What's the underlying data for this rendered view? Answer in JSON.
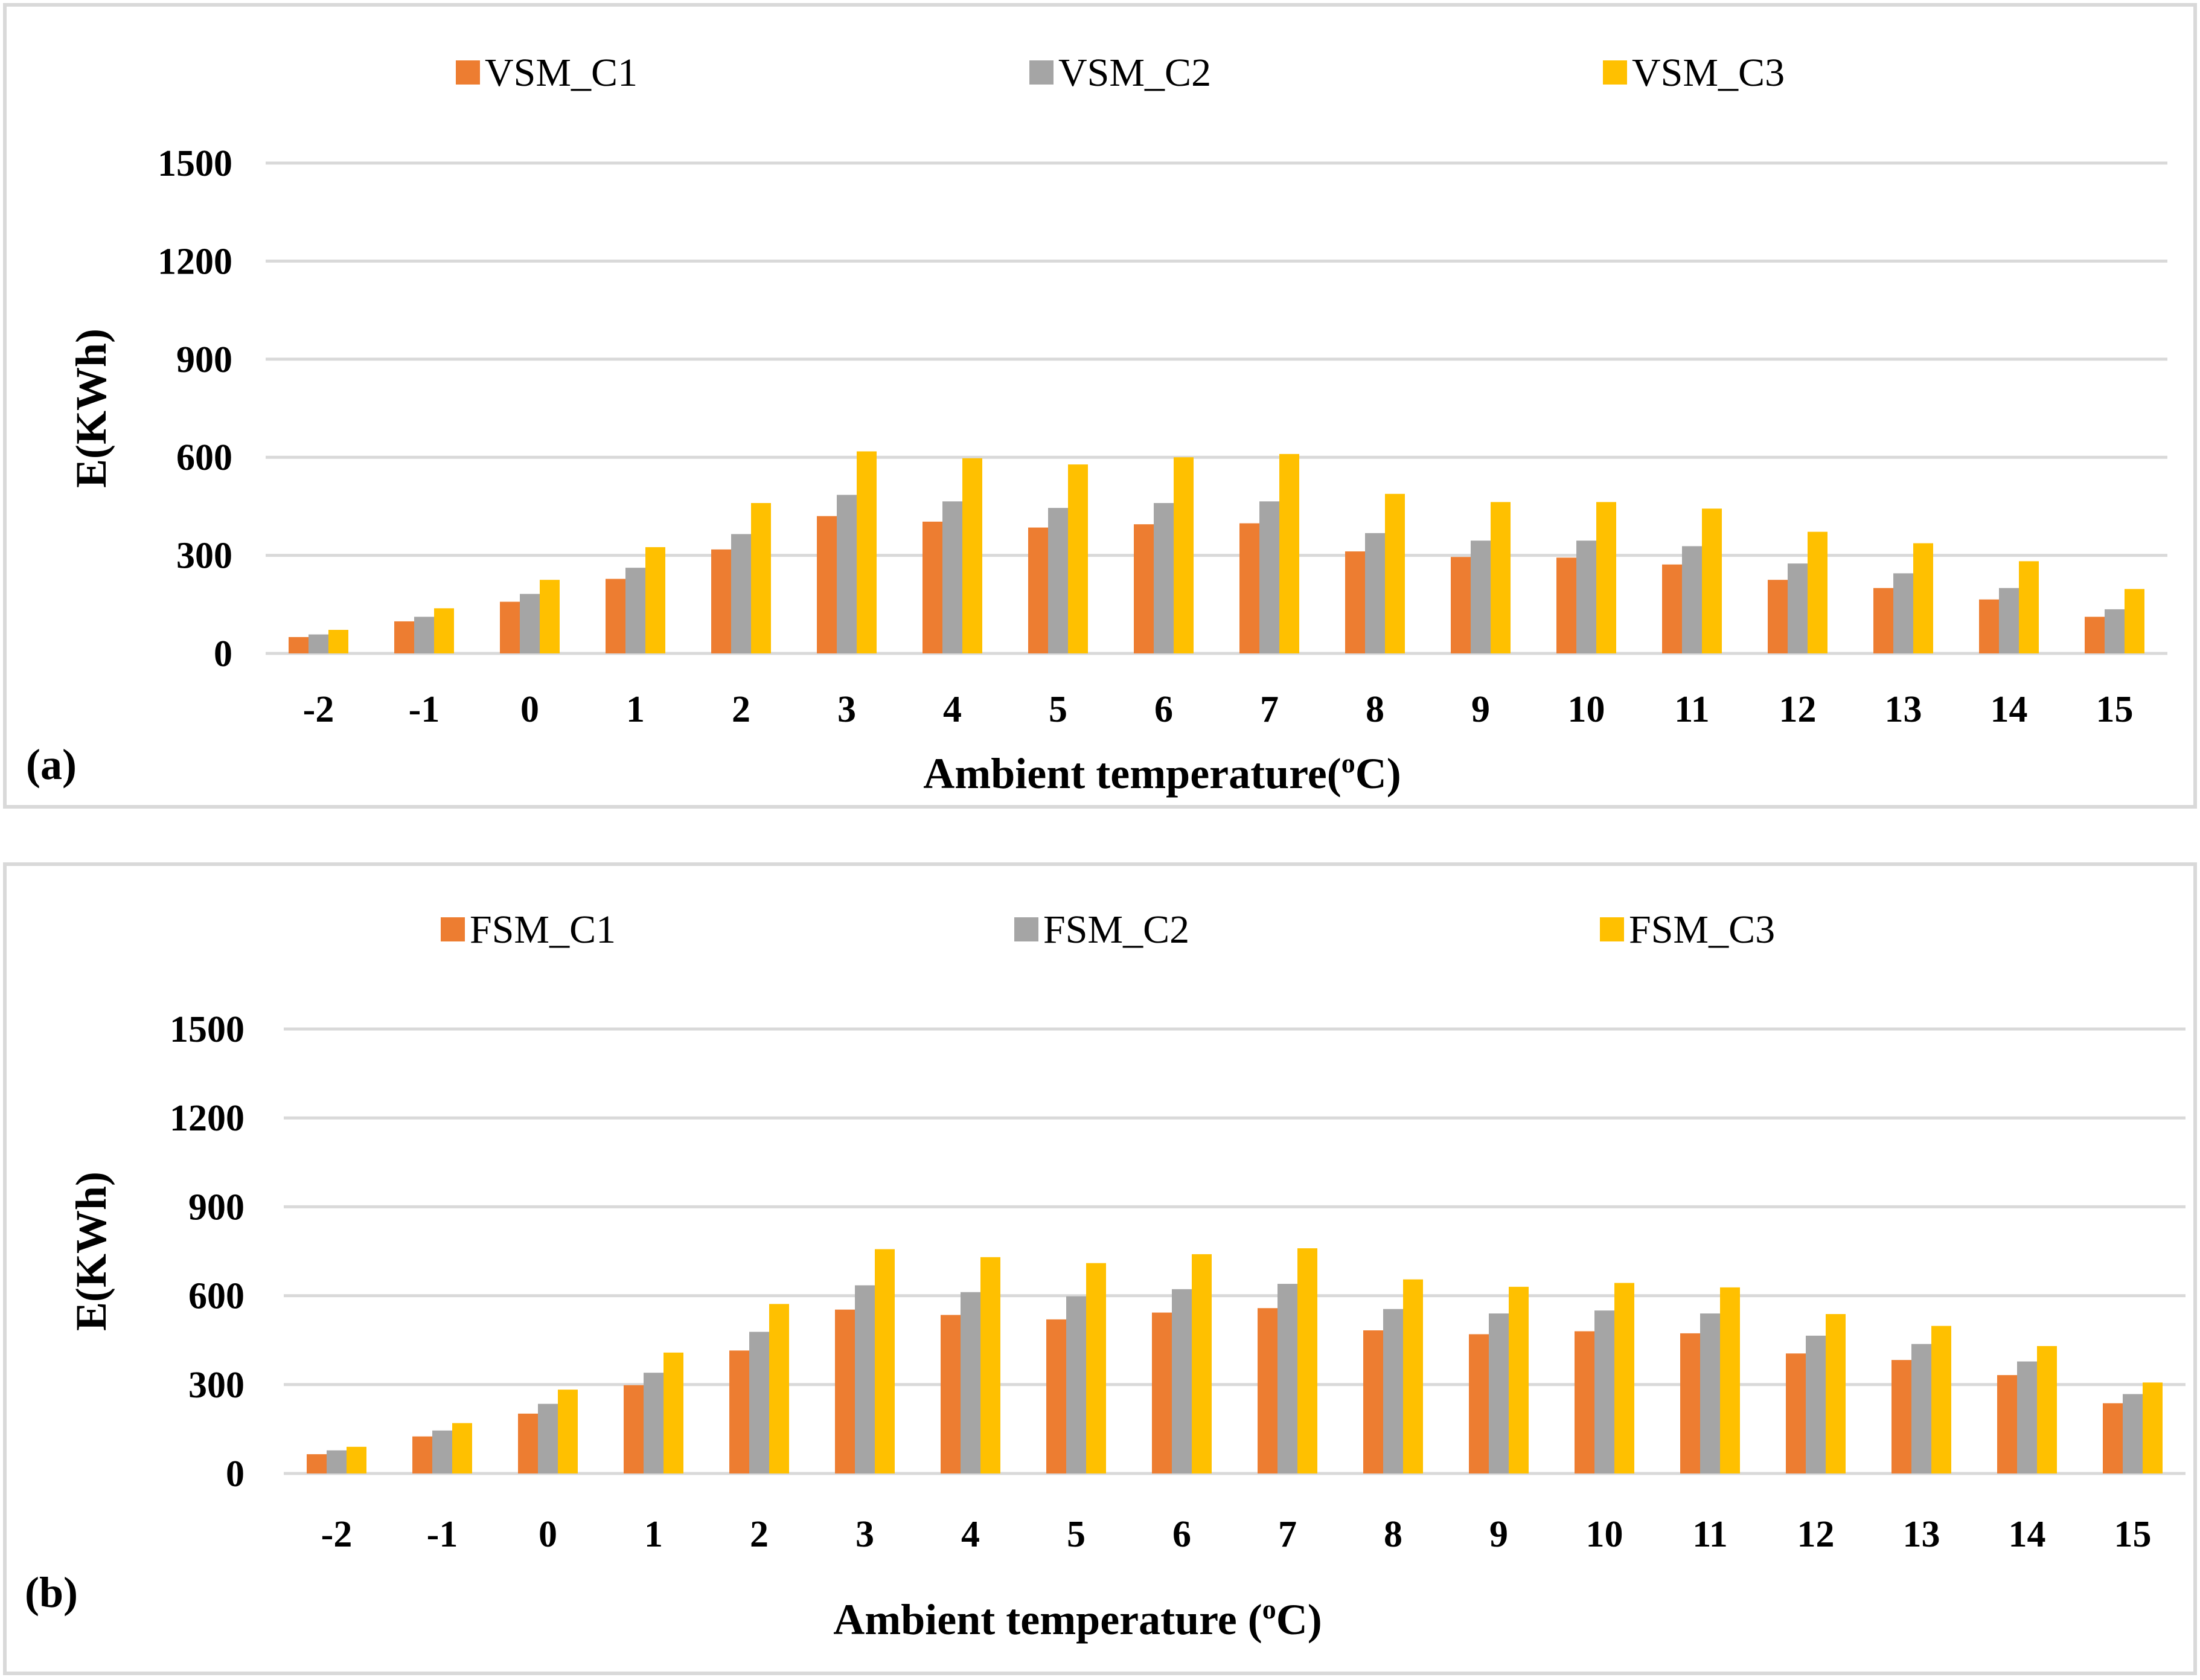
{
  "colors": {
    "c1": "#ED7D31",
    "c2": "#A5A5A5",
    "c3": "#FFC000"
  },
  "chart_data": [
    {
      "type": "bar",
      "panel_tag": "(a)",
      "xlabel": "Ambient temperature(",
      "xlabel_sup": "o",
      "xlabel_end": "C)",
      "ylabel": "E(KWh)",
      "ylim": [
        0,
        1500
      ],
      "yticks": [
        0,
        300,
        600,
        900,
        1200,
        1500
      ],
      "grid": true,
      "legend_position": "top",
      "categories": [
        "-2",
        "-1",
        "0",
        "1",
        "2",
        "3",
        "4",
        "5",
        "6",
        "7",
        "8",
        "9",
        "10",
        "11",
        "12",
        "13",
        "14",
        "15"
      ],
      "series": [
        {
          "name": "VSM_C1",
          "values": [
            50,
            98,
            158,
            228,
            318,
            420,
            403,
            385,
            395,
            398,
            312,
            295,
            293,
            272,
            225,
            200,
            165,
            112
          ]
        },
        {
          "name": "VSM_C2",
          "values": [
            58,
            112,
            182,
            262,
            365,
            485,
            465,
            445,
            460,
            465,
            368,
            345,
            345,
            328,
            275,
            245,
            200,
            135
          ]
        },
        {
          "name": "VSM_C3",
          "values": [
            72,
            138,
            225,
            325,
            460,
            618,
            597,
            578,
            600,
            610,
            488,
            463,
            463,
            443,
            372,
            337,
            282,
            197
          ]
        }
      ]
    },
    {
      "type": "bar",
      "panel_tag": "(b)",
      "xlabel": "Ambient temperature (",
      "xlabel_sup": "o",
      "xlabel_end": "C)",
      "ylabel": "E(KWh)",
      "ylim": [
        0,
        1500
      ],
      "yticks": [
        0,
        300,
        600,
        900,
        1200,
        1500
      ],
      "grid": true,
      "legend_position": "top",
      "categories": [
        "-2",
        "-1",
        "0",
        "1",
        "2",
        "3",
        "4",
        "5",
        "6",
        "7",
        "8",
        "9",
        "10",
        "11",
        "12",
        "13",
        "14",
        "15"
      ],
      "series": [
        {
          "name": "FSM_C1",
          "values": [
            65,
            125,
            202,
            298,
            415,
            553,
            535,
            520,
            543,
            558,
            483,
            470,
            480,
            473,
            405,
            383,
            332,
            237
          ]
        },
        {
          "name": "FSM_C2",
          "values": [
            78,
            145,
            235,
            340,
            478,
            635,
            612,
            598,
            622,
            640,
            555,
            540,
            550,
            540,
            465,
            437,
            378,
            268
          ]
        },
        {
          "name": "FSM_C3",
          "values": [
            90,
            170,
            283,
            408,
            572,
            757,
            730,
            710,
            740,
            760,
            655,
            630,
            643,
            628,
            538,
            498,
            430,
            307
          ]
        }
      ]
    }
  ]
}
